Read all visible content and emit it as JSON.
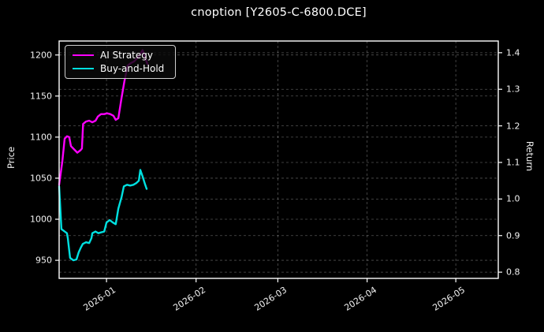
{
  "title": "cnoption [Y2605-C-6800.DCE]",
  "colors": {
    "background": "#000000",
    "foreground": "#f2f2f2",
    "grid": "#9a9a9a",
    "ai_strategy": "#ff00ff",
    "buy_and_hold": "#00e0e0"
  },
  "legend": {
    "items": [
      {
        "label": "AI Strategy",
        "color": "#ff00ff"
      },
      {
        "label": "Buy-and-Hold",
        "color": "#00e0e0"
      }
    ]
  },
  "chart_data": {
    "type": "line",
    "title": "cnoption [Y2605-C-6800.DCE]",
    "grid": "dashed, both axes",
    "legend_position": "upper left",
    "x_axis": {
      "label": "",
      "unit": "date",
      "domain_days": [
        0,
        152
      ],
      "tick_days": [
        16.4,
        47.4,
        75.7,
        106.6,
        137.3
      ],
      "tick_labels": [
        "2026-01",
        "2026-02",
        "2026-03",
        "2026-04",
        "2026-05"
      ],
      "start_date_approx": "2025-12-15"
    },
    "y_left": {
      "label": "Price",
      "lim": [
        928,
        1217
      ],
      "tick_values": [
        950,
        1000,
        1050,
        1100,
        1150,
        1200
      ],
      "tick_labels": [
        "950",
        "1000",
        "1050",
        "1100",
        "1150",
        "1200"
      ]
    },
    "y_right": {
      "label": "Return",
      "lim": [
        0.783,
        1.432
      ],
      "tick_values": [
        0.8,
        0.9,
        1.0,
        1.1,
        1.2,
        1.3,
        1.4
      ],
      "tick_labels": [
        "0.8",
        "0.9",
        "1.0",
        "1.1",
        "1.2",
        "1.3",
        "1.4"
      ]
    },
    "series": [
      {
        "name": "AI Strategy",
        "color": "#ff00ff",
        "axis": "left",
        "points": [
          [
            0,
            1042
          ],
          [
            1.1,
            1070
          ],
          [
            1.9,
            1098
          ],
          [
            2.7,
            1101
          ],
          [
            3.5,
            1100
          ],
          [
            4.1,
            1089
          ],
          [
            5.2,
            1085
          ],
          [
            6.3,
            1081
          ],
          [
            7.4,
            1084
          ],
          [
            7.9,
            1086
          ],
          [
            8.3,
            1116
          ],
          [
            9.3,
            1119
          ],
          [
            10.4,
            1120
          ],
          [
            11.5,
            1118
          ],
          [
            12.6,
            1120
          ],
          [
            13.4,
            1125
          ],
          [
            14.5,
            1128
          ],
          [
            15.6,
            1128
          ],
          [
            16.6,
            1129
          ],
          [
            17.7,
            1128
          ],
          [
            18.8,
            1126
          ],
          [
            19.6,
            1121
          ],
          [
            20.5,
            1123
          ],
          [
            21.6,
            1148
          ],
          [
            22.6,
            1168
          ],
          [
            23.7,
            1187
          ],
          [
            24.8,
            1190
          ],
          [
            25.9,
            1192
          ],
          [
            27.0,
            1196
          ],
          [
            28.1,
            1201
          ],
          [
            28.9,
            1206
          ],
          [
            29.7,
            1197
          ],
          [
            30.6,
            1189
          ]
        ]
      },
      {
        "name": "Buy-and-Hold",
        "color": "#00e0e0",
        "axis": "left",
        "points": [
          [
            0,
            1040
          ],
          [
            0.8,
            988
          ],
          [
            1.9,
            985
          ],
          [
            2.7,
            983
          ],
          [
            3.0,
            977
          ],
          [
            3.5,
            962
          ],
          [
            3.8,
            953
          ],
          [
            4.9,
            950
          ],
          [
            6.0,
            951
          ],
          [
            6.8,
            960
          ],
          [
            7.6,
            966
          ],
          [
            8.2,
            970
          ],
          [
            9.3,
            972
          ],
          [
            10.4,
            971
          ],
          [
            11.2,
            977
          ],
          [
            11.5,
            983
          ],
          [
            12.6,
            985
          ],
          [
            13.6,
            983
          ],
          [
            14.5,
            984
          ],
          [
            15.6,
            985
          ],
          [
            16.4,
            996
          ],
          [
            17.5,
            999
          ],
          [
            18.6,
            996
          ],
          [
            19.6,
            994
          ],
          [
            20.5,
            1013
          ],
          [
            21.6,
            1027
          ],
          [
            22.4,
            1040
          ],
          [
            23.5,
            1042
          ],
          [
            24.6,
            1041
          ],
          [
            25.7,
            1042
          ],
          [
            26.7,
            1044
          ],
          [
            27.6,
            1047
          ],
          [
            28.1,
            1060
          ],
          [
            28.9,
            1052
          ],
          [
            29.7,
            1043
          ],
          [
            30.3,
            1037
          ]
        ]
      }
    ]
  }
}
